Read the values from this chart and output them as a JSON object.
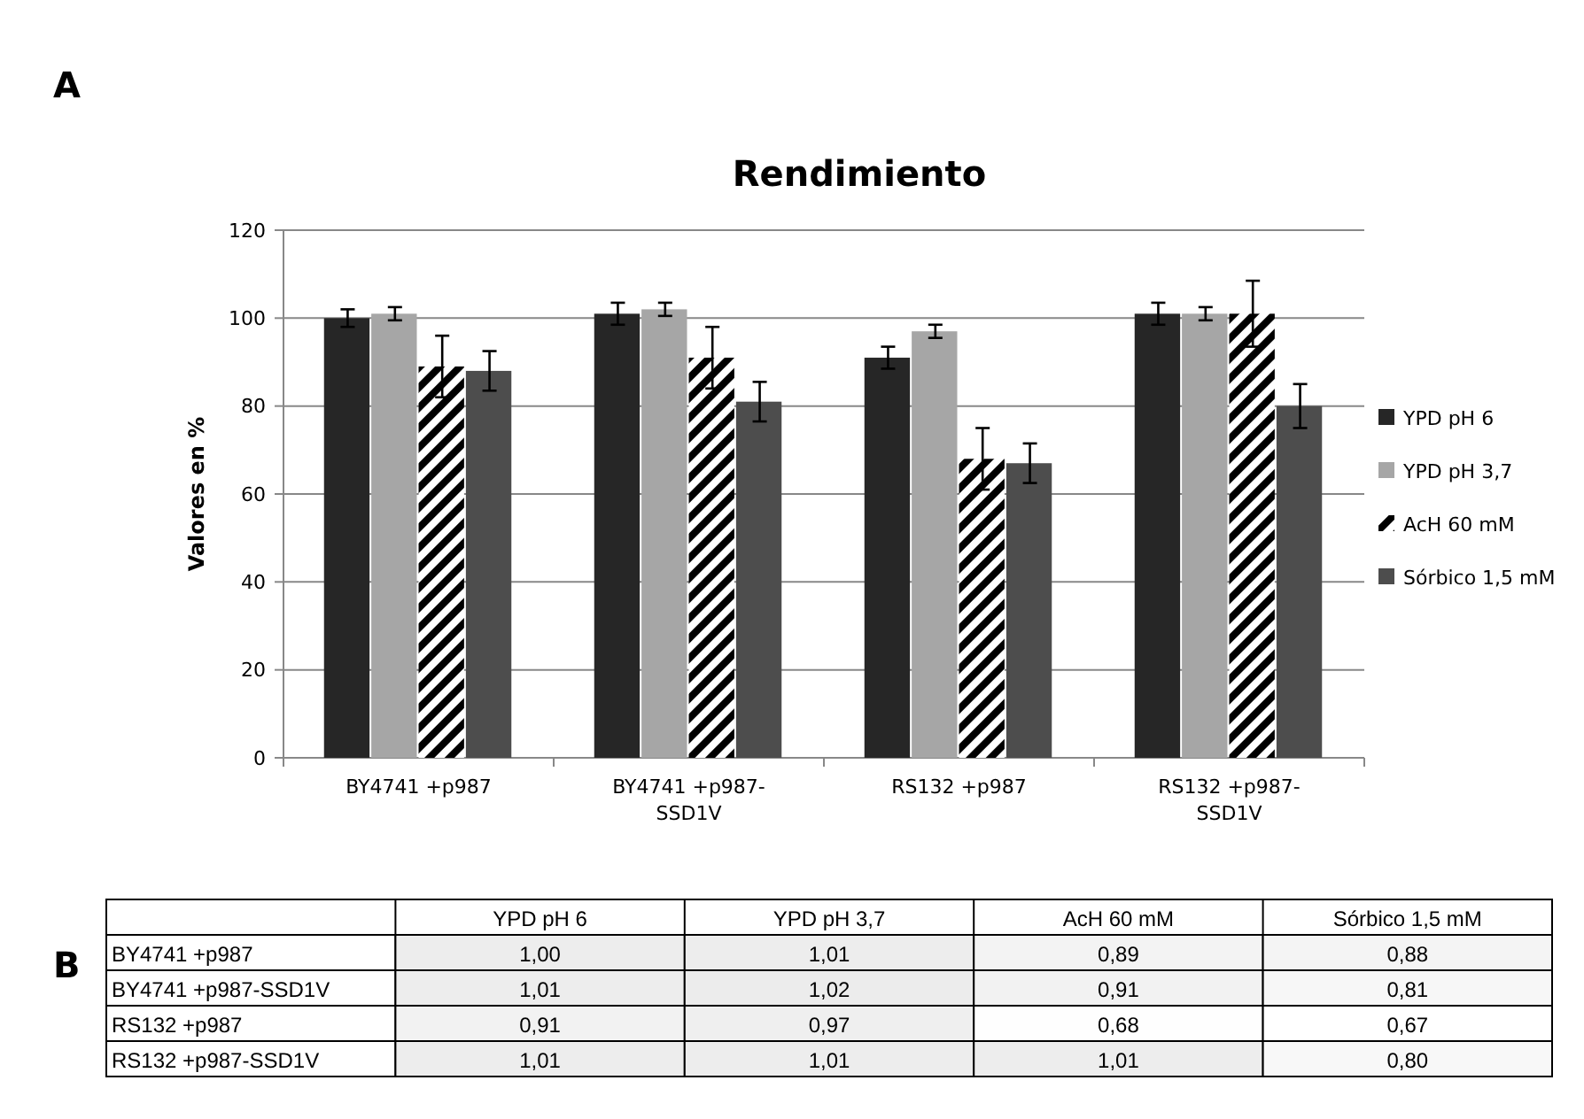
{
  "chart_data": [
    {
      "type": "bar",
      "title": "Rendimiento",
      "ylabel": "Valores en %",
      "annotations": [
        "A"
      ],
      "categories": [
        "BY4741 +p987",
        "BY4741 +p987-SSD1V",
        "RS132 +p987",
        "RS132 +p987-SSD1V"
      ],
      "series": [
        {
          "name": "YPD pH 6",
          "color": "#262626",
          "values": [
            100,
            101,
            91,
            101
          ],
          "errors": [
            2,
            2.5,
            2.5,
            2.5
          ]
        },
        {
          "name": "YPD pH 3,7",
          "color": "#a6a6a6",
          "values": [
            101,
            102,
            97,
            101
          ],
          "errors": [
            1.5,
            1.5,
            1.5,
            1.5
          ]
        },
        {
          "name": "AcH 60 mM",
          "color": "#000000",
          "values": [
            89,
            91,
            68,
            101
          ],
          "errors": [
            7,
            7,
            7,
            7.5
          ]
        },
        {
          "name": "Sórbico 1,5 mM",
          "color": "#4d4d4d",
          "values": [
            88,
            81,
            67,
            80
          ],
          "errors": [
            4.5,
            4.5,
            4.5,
            5
          ]
        }
      ],
      "ylim": [
        0,
        120
      ],
      "yticks": [
        0,
        20,
        40,
        60,
        80,
        100,
        120
      ],
      "grid": "y",
      "legend": "right"
    },
    {
      "type": "heatmap",
      "annotations": [
        "B"
      ],
      "categories": [
        "YPD pH 6",
        "YPD pH 3,7",
        "AcH 60 mM",
        "Sórbico 1,5 mM"
      ],
      "y_categories": [
        "BY4741 +p987",
        "BY4741 +p987-SSD1V",
        "RS132 +p987",
        "RS132 +p987-SSD1V"
      ],
      "cells": [
        [
          1.0,
          1.01,
          0.89,
          0.88
        ],
        [
          1.01,
          1.02,
          0.91,
          0.81
        ],
        [
          0.91,
          0.97,
          0.68,
          0.67
        ],
        [
          1.01,
          1.01,
          1.01,
          0.8
        ]
      ],
      "cell_labels": [
        [
          "1,00",
          "1,01",
          "0,89",
          "0,88"
        ],
        [
          "1,01",
          "1,02",
          "0,91",
          "0,81"
        ],
        [
          "0,91",
          "0,97",
          "0,68",
          "0,67"
        ],
        [
          "1,01",
          "1,01",
          "1,01",
          "0,80"
        ]
      ]
    }
  ]
}
